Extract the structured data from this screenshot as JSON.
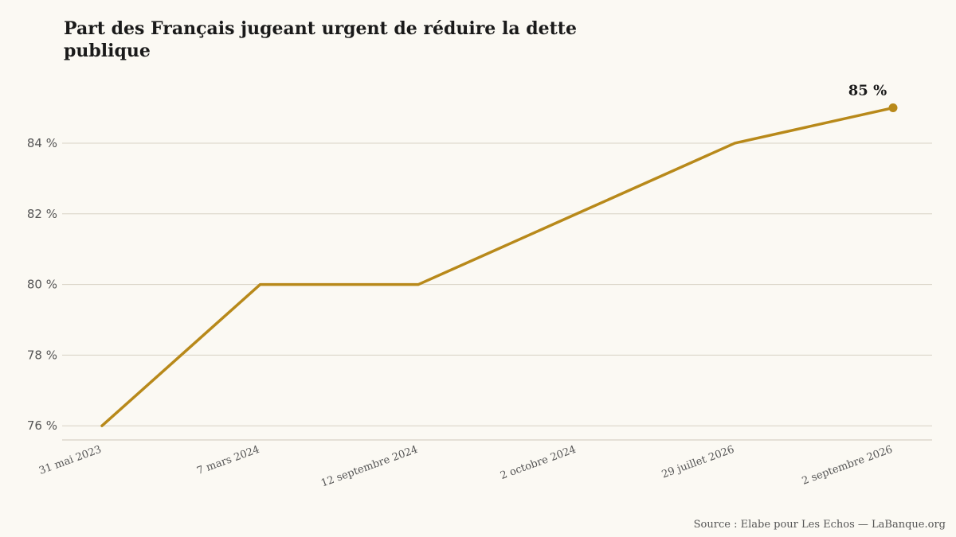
{
  "chart_data": {
    "type": "line",
    "title": "Part des Français jugeant urgent de réduire la dette publique",
    "categories": [
      "31 mai 2023",
      "7 mars 2024",
      "12 septembre 2024",
      "2 octobre 2024",
      "29 juillet 2026",
      "2 septembre 2026"
    ],
    "series": [
      {
        "values": [
          76,
          80,
          80,
          82,
          84,
          85
        ]
      }
    ],
    "ylim": [
      75.6,
      85.8
    ],
    "yticks": [
      76,
      78,
      80,
      82,
      84
    ],
    "ytick_labels": [
      "76 %",
      "78 %",
      "80 %",
      "82 %",
      "84 %"
    ],
    "end_label": "85 %",
    "grid": "horizontal",
    "legend": "none",
    "series_color": "#b8891a",
    "source": "Source : Elabe pour Les Echos — LaBanque.org"
  }
}
